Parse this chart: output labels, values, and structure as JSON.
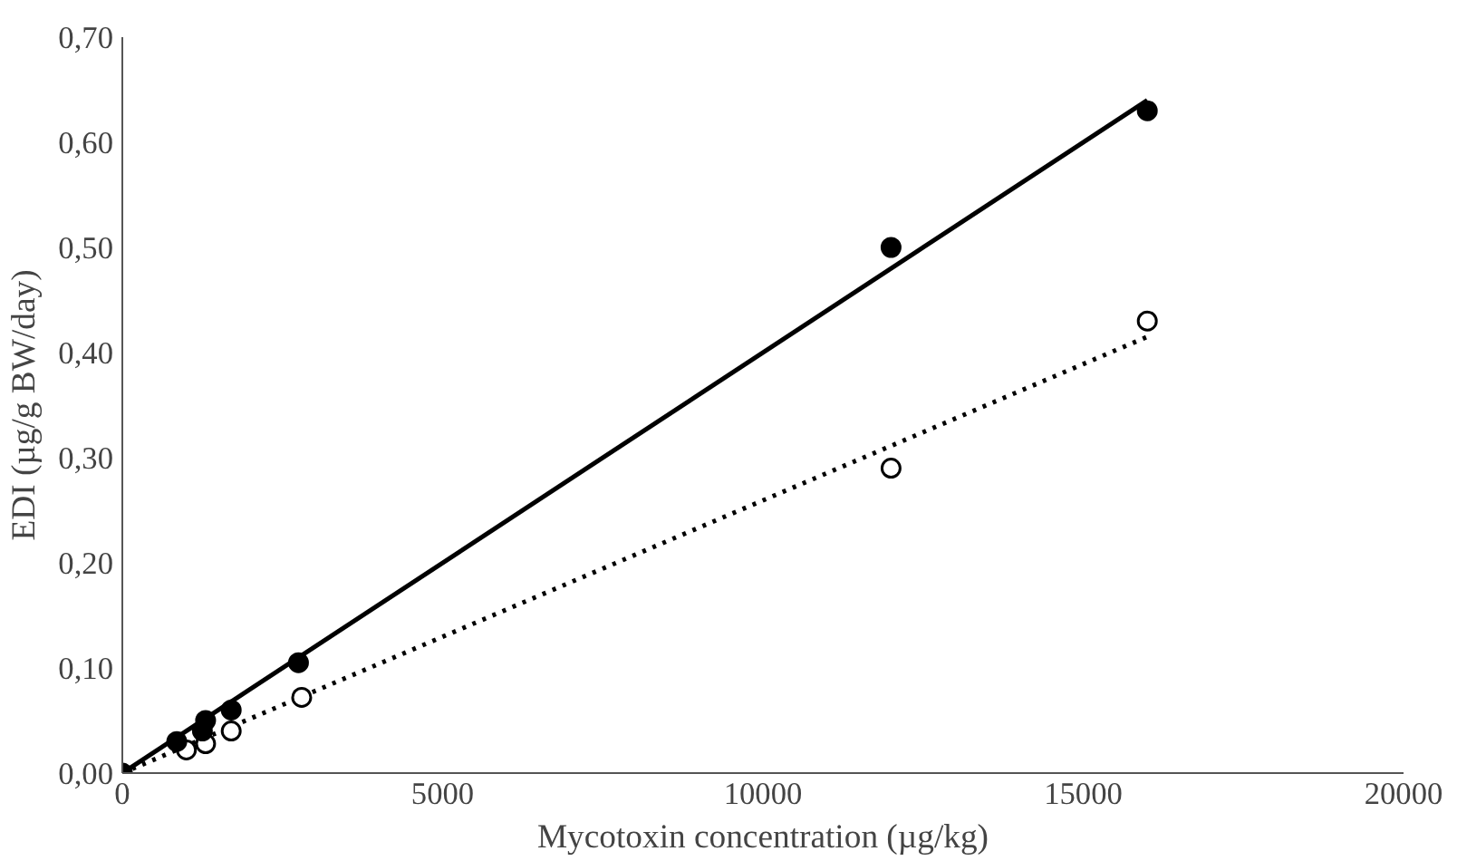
{
  "chart_data": {
    "type": "scatter",
    "xlabel": "Mycotoxin concentration (µg/kg)",
    "ylabel": "EDI (µg/g BW/day)",
    "xlim": [
      0,
      20000
    ],
    "xticks": [
      0,
      5000,
      10000,
      15000,
      20000
    ],
    "ylim": [
      0,
      0.7
    ],
    "yticks": [
      {
        "value": 0,
        "label": "0,00"
      },
      {
        "value": 0.1,
        "label": "0,10"
      },
      {
        "value": 0.2,
        "label": "0,20"
      },
      {
        "value": 0.3,
        "label": "0,30"
      },
      {
        "value": 0.4,
        "label": "0,40"
      },
      {
        "value": 0.5,
        "label": "0,50"
      },
      {
        "value": 0.6,
        "label": "0,60"
      },
      {
        "value": 0.7,
        "label": "0,70"
      }
    ],
    "grid": false,
    "series": [
      {
        "type": "line",
        "color": "#000000",
        "line_style": "solid",
        "marker": "none",
        "x": [
          0,
          16000
        ],
        "values": [
          0,
          0.64
        ]
      },
      {
        "type": "line",
        "color": "#000000",
        "line_style": "dotted",
        "marker": "none",
        "x": [
          0,
          16000
        ],
        "values": [
          0,
          0.415
        ]
      },
      {
        "color": "#ffffff",
        "marker": "circle",
        "x": [
          1000,
          1300,
          1700,
          2800,
          12000,
          16000
        ],
        "values": [
          0.022,
          0.028,
          0.04,
          0.072,
          0.29,
          0.43
        ]
      },
      {
        "color": "#000000",
        "marker": "circle",
        "x": [
          0,
          850,
          1250,
          1300,
          1700,
          2750,
          12000,
          16000
        ],
        "values": [
          0,
          0.03,
          0.04,
          0.05,
          0.06,
          0.105,
          0.5,
          0.63
        ]
      }
    ]
  }
}
